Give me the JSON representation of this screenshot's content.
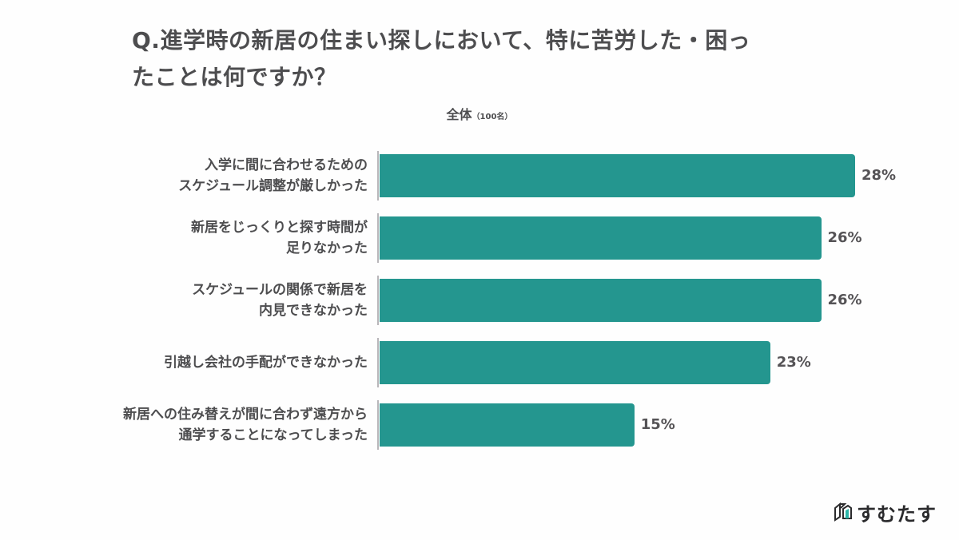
{
  "header": {
    "title_line1": "Q.進学時の新居の住まい探しにおいて、特に苦労した・困っ",
    "title_line2": "たことは何ですか？",
    "subtitle": "全体",
    "subtitle_note": "（100名）"
  },
  "brand": {
    "name": "すむたす",
    "icon": "house-cube-logo-icon"
  },
  "colors": {
    "bar": "#24968f",
    "text": "#4d4d4f",
    "axis": "#b9b6ba"
  },
  "chart_data": {
    "type": "bar",
    "orientation": "horizontal",
    "title": "Q.進学時の新居の住まい探しにおいて、特に苦労した・困ったことは何ですか？",
    "subtitle": "全体（100名）",
    "categories": [
      "入学に間に合わせるためのスケジュール調整が厳しかった",
      "新居をじっくりと探す時間が足りなかった",
      "スケジュールの関係で新居を内見できなかった",
      "引越し会社の手配ができなかった",
      "新居への住み替えが間に合わず遠方から通学することになってしまった"
    ],
    "values": [
      28,
      26,
      26,
      23,
      15
    ],
    "value_labels": [
      "28%",
      "26%",
      "26%",
      "23%",
      "15%"
    ],
    "unit": "%",
    "xlabel": "",
    "ylabel": "",
    "grid": false,
    "legend": null
  },
  "rows": [
    {
      "line1": "入学に間に合わせるための",
      "line2": "スケジュール調整が厳しかった",
      "value": "28%"
    },
    {
      "line1": "新居をじっくりと探す時間が",
      "line2": "足りなかった",
      "value": "26%"
    },
    {
      "line1": "スケジュールの関係で新居を",
      "line2": "内見できなかった",
      "value": "26%"
    },
    {
      "line1": "引越し会社の手配ができなかった",
      "line2": "",
      "value": "23%"
    },
    {
      "line1": "新居への住み替えが間に合わず遠方から",
      "line2": "通学することになってしまった",
      "value": "15%"
    }
  ]
}
